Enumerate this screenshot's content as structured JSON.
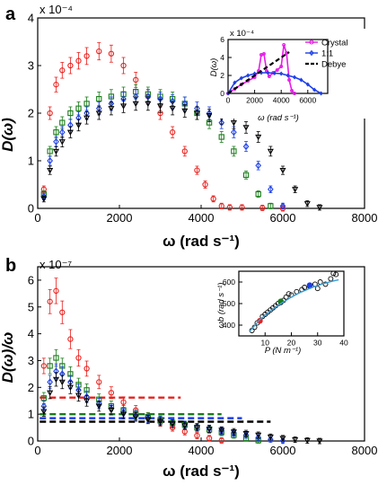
{
  "chart_data": [
    {
      "type": "scatter",
      "panel_label": "a",
      "xlabel": "ω (rad s⁻¹)",
      "ylabel": "D(ω)",
      "xlim": [
        0,
        8000
      ],
      "ylim": [
        0,
        4
      ],
      "y_scale_label": "x 10⁻⁴",
      "xticks": [
        "0",
        "2000",
        "4000",
        "6000",
        "8000"
      ],
      "yticks": [
        "0",
        "1",
        "2",
        "3",
        "4"
      ],
      "grid": false,
      "series": [
        {
          "color": "#e8201c",
          "marker": "circle",
          "error_bars": true,
          "x": [
            150,
            300,
            450,
            600,
            800,
            1000,
            1200,
            1500,
            1800,
            2100,
            2400,
            2700,
            3000,
            3300,
            3600,
            3900,
            4100,
            4300,
            4500,
            4700,
            5000,
            5500,
            6000
          ],
          "y": [
            0.4,
            2.0,
            2.6,
            2.9,
            3.0,
            3.1,
            3.2,
            3.3,
            3.25,
            3.0,
            2.7,
            2.35,
            2.0,
            1.6,
            1.2,
            0.8,
            0.5,
            0.2,
            0.05,
            0.02,
            0.02,
            0.01,
            0.0
          ]
        },
        {
          "color": "#1a7d1a",
          "marker": "square",
          "error_bars": true,
          "x": [
            150,
            300,
            450,
            600,
            800,
            1000,
            1200,
            1500,
            1800,
            2100,
            2400,
            2700,
            3000,
            3300,
            3600,
            3900,
            4200,
            4500,
            4800,
            5100,
            5400,
            5700
          ],
          "y": [
            0.3,
            1.2,
            1.6,
            1.8,
            2.0,
            2.1,
            2.2,
            2.3,
            2.35,
            2.4,
            2.45,
            2.4,
            2.35,
            2.3,
            2.2,
            2.0,
            1.8,
            1.5,
            1.2,
            0.7,
            0.3,
            0.05
          ]
        },
        {
          "color": "#1c3fe8",
          "marker": "diamond",
          "error_bars": true,
          "x": [
            150,
            300,
            450,
            600,
            800,
            1000,
            1200,
            1500,
            1800,
            2100,
            2400,
            2700,
            3000,
            3300,
            3600,
            3900,
            4200,
            4500,
            4800,
            5100,
            5400,
            5700,
            6000
          ],
          "y": [
            0.25,
            1.0,
            1.4,
            1.6,
            1.75,
            1.9,
            2.0,
            2.1,
            2.2,
            2.3,
            2.35,
            2.35,
            2.3,
            2.25,
            2.2,
            2.1,
            2.0,
            1.8,
            1.6,
            1.3,
            0.9,
            0.4,
            0.05
          ]
        },
        {
          "color": "#000000",
          "marker": "triangle-down",
          "error_bars": true,
          "x": [
            150,
            300,
            450,
            600,
            800,
            1000,
            1200,
            1500,
            1800,
            2100,
            2400,
            2700,
            3000,
            3300,
            3600,
            3900,
            4200,
            4500,
            4800,
            5100,
            5400,
            5700,
            6000,
            6300,
            6600,
            6900
          ],
          "y": [
            0.2,
            0.8,
            1.2,
            1.4,
            1.6,
            1.75,
            1.9,
            2.0,
            2.1,
            2.15,
            2.2,
            2.2,
            2.15,
            2.1,
            2.05,
            2.0,
            1.95,
            1.9,
            1.8,
            1.7,
            1.5,
            1.2,
            0.8,
            0.4,
            0.1,
            0.02
          ]
        }
      ],
      "inset": {
        "type": "line",
        "ylabel": "D(ω)",
        "xlabel": "ω (rad s⁻¹)",
        "y_scale_label": "x 10⁻⁴",
        "xlim": [
          0,
          7500
        ],
        "ylim": [
          0,
          6
        ],
        "xticks": [
          "0",
          "2000",
          "4000",
          "6000"
        ],
        "yticks": [
          "0",
          "2",
          "4",
          "6"
        ],
        "legend_position": "top-right",
        "series": [
          {
            "name": "Crystal",
            "color": "#e81ce8",
            "marker": "circle",
            "x": [
              0,
              500,
              1000,
              1500,
              2000,
              2300,
              2500,
              2700,
              2900,
              3100,
              3400,
              3700,
              4000,
              4200,
              4400,
              4600,
              4800,
              5000
            ],
            "y": [
              0,
              0.5,
              1.0,
              1.4,
              1.8,
              2.5,
              4.3,
              4.4,
              2.5,
              1.9,
              2.3,
              2.6,
              3.0,
              5.4,
              4.5,
              1.5,
              0.3,
              0.0
            ]
          },
          {
            "name": "1:1",
            "color": "#1c3fe8",
            "marker": "diamond",
            "x": [
              0,
              500,
              1000,
              1500,
              2000,
              2500,
              3000,
              3500,
              4000,
              4500,
              5000,
              5500,
              6000,
              6500,
              7000
            ],
            "y": [
              0,
              1.2,
              1.7,
              2.0,
              2.2,
              2.3,
              2.3,
              2.25,
              2.2,
              2.0,
              1.8,
              1.5,
              1.0,
              0.4,
              0.0
            ]
          },
          {
            "name": "Debye",
            "color": "#000000",
            "marker": "none",
            "dashed": true,
            "x": [
              0,
              4600
            ],
            "y": [
              0,
              4.6
            ]
          }
        ]
      }
    },
    {
      "type": "scatter",
      "panel_label": "b",
      "xlabel": "ω (rad s⁻¹)",
      "ylabel": "D(ω)/ω",
      "xlim": [
        0,
        8000
      ],
      "ylim": [
        0,
        6.5
      ],
      "y_scale_label": "x 10⁻⁷",
      "xticks": [
        "0",
        "2000",
        "4000",
        "6000",
        "8000"
      ],
      "yticks": [
        "0",
        "1",
        "2",
        "3",
        "4",
        "5",
        "6"
      ],
      "grid": false,
      "series": [
        {
          "color": "#e8201c",
          "marker": "circle",
          "error_bars": true,
          "x": [
            150,
            300,
            450,
            600,
            800,
            1000,
            1200,
            1500,
            1800,
            2100,
            2400,
            2700,
            3000,
            3300,
            3600,
            3900,
            4200,
            4500
          ],
          "y": [
            2.8,
            5.2,
            5.6,
            4.8,
            3.8,
            3.1,
            2.7,
            2.2,
            1.8,
            1.45,
            1.15,
            0.9,
            0.7,
            0.5,
            0.35,
            0.2,
            0.1,
            0.02
          ]
        },
        {
          "color": "#1a7d1a",
          "marker": "square",
          "error_bars": true,
          "x": [
            150,
            300,
            450,
            600,
            800,
            1000,
            1200,
            1500,
            1800,
            2100,
            2400,
            2700,
            3000,
            3300,
            3600,
            3900,
            4200,
            4500,
            4800,
            5100,
            5400
          ],
          "y": [
            1.6,
            2.8,
            3.1,
            2.8,
            2.5,
            2.1,
            1.9,
            1.55,
            1.3,
            1.15,
            1.0,
            0.9,
            0.78,
            0.68,
            0.6,
            0.5,
            0.42,
            0.32,
            0.22,
            0.1,
            0.02
          ]
        },
        {
          "color": "#1c3fe8",
          "marker": "diamond",
          "error_bars": true,
          "x": [
            150,
            300,
            450,
            600,
            800,
            1000,
            1200,
            1500,
            1800,
            2100,
            2400,
            2700,
            3000,
            3300,
            3600,
            3900,
            4200,
            4500,
            4800,
            5100,
            5400,
            5700,
            6000
          ],
          "y": [
            1.3,
            2.2,
            2.6,
            2.5,
            2.2,
            1.9,
            1.65,
            1.4,
            1.2,
            1.05,
            0.95,
            0.85,
            0.76,
            0.68,
            0.6,
            0.52,
            0.46,
            0.38,
            0.3,
            0.22,
            0.13,
            0.06,
            0.01
          ]
        },
        {
          "color": "#000000",
          "marker": "triangle-down",
          "error_bars": true,
          "x": [
            150,
            300,
            450,
            600,
            800,
            1000,
            1200,
            1500,
            1800,
            2100,
            2400,
            2700,
            3000,
            3300,
            3600,
            3900,
            4200,
            4500,
            4800,
            5100,
            5400,
            5700,
            6000,
            6300,
            6600,
            6900
          ],
          "y": [
            1.1,
            1.8,
            2.3,
            2.2,
            2.0,
            1.7,
            1.5,
            1.3,
            1.15,
            1.0,
            0.9,
            0.8,
            0.72,
            0.64,
            0.57,
            0.5,
            0.45,
            0.4,
            0.34,
            0.28,
            0.22,
            0.15,
            0.1,
            0.05,
            0.02,
            0.0
          ]
        }
      ],
      "debye_levels": [
        {
          "color": "#e8201c",
          "y": 1.62,
          "x_end": 3500
        },
        {
          "color": "#1a7d1a",
          "y": 1.0,
          "x_end": 4500
        },
        {
          "color": "#1c3fe8",
          "y": 0.85,
          "x_end": 5000
        },
        {
          "color": "#000000",
          "y": 0.72,
          "x_end": 5700
        }
      ],
      "inset": {
        "type": "scatter",
        "xlabel": "P (N m⁻¹)",
        "ylabel": "ωb (rad s⁻¹)",
        "xlim": [
          0,
          40
        ],
        "ylim": [
          350,
          650
        ],
        "xticks": [
          "10",
          "20",
          "30",
          "40"
        ],
        "yticks": [
          "400",
          "500",
          "600"
        ],
        "points": {
          "x": [
            5,
            6,
            7,
            8,
            9,
            10,
            11,
            12,
            13,
            14,
            15,
            16,
            17,
            18,
            19,
            20,
            22,
            24,
            25,
            27,
            29,
            30,
            31,
            33,
            35,
            36,
            37
          ],
          "y": [
            375,
            390,
            410,
            420,
            440,
            450,
            460,
            470,
            480,
            490,
            500,
            505,
            515,
            530,
            545,
            540,
            555,
            565,
            575,
            580,
            590,
            570,
            600,
            590,
            615,
            640,
            635
          ]
        },
        "highlighted_points": [
          {
            "color": "#e8201c",
            "x": 8,
            "y": 420
          },
          {
            "color": "#1a7d1a",
            "x": 16,
            "y": 510
          },
          {
            "color": "#1c3fe8",
            "x": 27,
            "y": 585
          }
        ],
        "fit_line_color": "#3a9fd8",
        "fit_curve": {
          "x": [
            4,
            8,
            12,
            16,
            20,
            24,
            28,
            32,
            36,
            38
          ],
          "y": [
            370,
            425,
            465,
            500,
            530,
            555,
            575,
            592,
            605,
            610
          ]
        }
      }
    }
  ]
}
